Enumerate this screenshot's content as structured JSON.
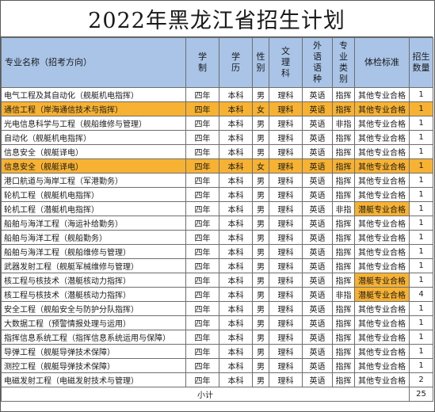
{
  "title": "2022年黑龙江省招生计划",
  "header": {
    "name": "专业名称（招考方向）",
    "xuezhi": "学\n制",
    "xueli": "学\n历",
    "xingbie": "性\n别",
    "wenli": "文\n理\n科",
    "waiyu": "外\n语\n语\n种",
    "leibie": "专\n业\n类\n别",
    "tijian": "体检标准",
    "shuliang": "招生\n数量"
  },
  "rows": [
    {
      "name": "电气工程及其自动化（舰艇机电指挥）",
      "xuezhi": "四年",
      "xueli": "本科",
      "xingbie": "男",
      "wenli": "理科",
      "waiyu": "英语",
      "leibie": "指挥",
      "tijian": "其他专业合格",
      "shuliang": "1",
      "highlight": false,
      "qual_highlight": false
    },
    {
      "name": "通信工程（岸海通信技术与指挥）",
      "xuezhi": "四年",
      "xueli": "本科",
      "xingbie": "女",
      "wenli": "理科",
      "waiyu": "英语",
      "leibie": "指挥",
      "tijian": "其他专业合格",
      "shuliang": "1",
      "highlight": true,
      "qual_highlight": false
    },
    {
      "name": "光电信息科学与工程（舰船维修与管理）",
      "xuezhi": "四年",
      "xueli": "本科",
      "xingbie": "男",
      "wenli": "理科",
      "waiyu": "英语",
      "leibie": "非指",
      "tijian": "其他专业合格",
      "shuliang": "1",
      "highlight": false,
      "qual_highlight": false
    },
    {
      "name": "自动化（舰艇机电指挥）",
      "xuezhi": "四年",
      "xueli": "本科",
      "xingbie": "男",
      "wenli": "理科",
      "waiyu": "英语",
      "leibie": "指挥",
      "tijian": "其他专业合格",
      "shuliang": "1",
      "highlight": false,
      "qual_highlight": false
    },
    {
      "name": "信息安全（舰艇译电）",
      "xuezhi": "四年",
      "xueli": "本科",
      "xingbie": "男",
      "wenli": "理科",
      "waiyu": "英语",
      "leibie": "指挥",
      "tijian": "其他专业合格",
      "shuliang": "1",
      "highlight": false,
      "qual_highlight": false
    },
    {
      "name": "信息安全（舰艇译电）",
      "xuezhi": "四年",
      "xueli": "本科",
      "xingbie": "女",
      "wenli": "理科",
      "waiyu": "英语",
      "leibie": "指挥",
      "tijian": "其他专业合格",
      "shuliang": "1",
      "highlight": true,
      "qual_highlight": false
    },
    {
      "name": "港口航道与海岸工程（军港勤务）",
      "xuezhi": "四年",
      "xueli": "本科",
      "xingbie": "男",
      "wenli": "理科",
      "waiyu": "英语",
      "leibie": "指挥",
      "tijian": "其他专业合格",
      "shuliang": "1",
      "highlight": false,
      "qual_highlight": false
    },
    {
      "name": "轮机工程（舰艇机电指挥）",
      "xuezhi": "四年",
      "xueli": "本科",
      "xingbie": "男",
      "wenli": "理科",
      "waiyu": "英语",
      "leibie": "指挥",
      "tijian": "其他专业合格",
      "shuliang": "1",
      "highlight": false,
      "qual_highlight": false
    },
    {
      "name": "轮机工程（潜艇机电指挥）",
      "xuezhi": "四年",
      "xueli": "本科",
      "xingbie": "男",
      "wenli": "理科",
      "waiyu": "英语",
      "leibie": "非指",
      "tijian": "潜艇专业合格",
      "shuliang": "1",
      "highlight": false,
      "qual_highlight": true
    },
    {
      "name": "船舶与海洋工程（海运补给勤务）",
      "xuezhi": "四年",
      "xueli": "本科",
      "xingbie": "男",
      "wenli": "理科",
      "waiyu": "英语",
      "leibie": "指挥",
      "tijian": "其他专业合格",
      "shuliang": "1",
      "highlight": false,
      "qual_highlight": false
    },
    {
      "name": "船舶与海洋工程（舰船勤务）",
      "xuezhi": "四年",
      "xueli": "本科",
      "xingbie": "男",
      "wenli": "理科",
      "waiyu": "英语",
      "leibie": "指挥",
      "tijian": "其他专业合格",
      "shuliang": "1",
      "highlight": false,
      "qual_highlight": false
    },
    {
      "name": "船舶与海洋工程（舰船维修与管理）",
      "xuezhi": "四年",
      "xueli": "本科",
      "xingbie": "男",
      "wenli": "理科",
      "waiyu": "英语",
      "leibie": "指挥",
      "tijian": "其他专业合格",
      "shuliang": "1",
      "highlight": false,
      "qual_highlight": false
    },
    {
      "name": "武器发射工程（舰艇军械维修与管理）",
      "xuezhi": "四年",
      "xueli": "本科",
      "xingbie": "男",
      "wenli": "理科",
      "waiyu": "英语",
      "leibie": "指挥",
      "tijian": "其他专业合格",
      "shuliang": "1",
      "highlight": false,
      "qual_highlight": false
    },
    {
      "name": "核工程与核技术（潜艇核动力指挥）",
      "xuezhi": "四年",
      "xueli": "本科",
      "xingbie": "男",
      "wenli": "理科",
      "waiyu": "英语",
      "leibie": "指挥",
      "tijian": "潜艇专业合格",
      "shuliang": "1",
      "highlight": false,
      "qual_highlight": true
    },
    {
      "name": "核工程与核技术（潜艇核动力指挥）",
      "xuezhi": "四年",
      "xueli": "本科",
      "xingbie": "男",
      "wenli": "理科",
      "waiyu": "英语",
      "leibie": "非指",
      "tijian": "潜艇专业合格",
      "shuliang": "4",
      "highlight": false,
      "qual_highlight": true
    },
    {
      "name": "安全工程（舰船安全与防护分队指挥）",
      "xuezhi": "四年",
      "xueli": "本科",
      "xingbie": "男",
      "wenli": "理科",
      "waiyu": "英语",
      "leibie": "指挥",
      "tijian": "其他专业合格",
      "shuliang": "1",
      "highlight": false,
      "qual_highlight": false
    },
    {
      "name": "大数据工程（预警情报处理与运用）",
      "xuezhi": "四年",
      "xueli": "本科",
      "xingbie": "男",
      "wenli": "理科",
      "waiyu": "英语",
      "leibie": "指挥",
      "tijian": "其他专业合格",
      "shuliang": "1",
      "highlight": false,
      "qual_highlight": false
    },
    {
      "name": "指挥信息系统工程（指挥信息系统运用与保障）",
      "xuezhi": "四年",
      "xueli": "本科",
      "xingbie": "男",
      "wenli": "理科",
      "waiyu": "英语",
      "leibie": "指挥",
      "tijian": "其他专业合格",
      "shuliang": "1",
      "highlight": false,
      "qual_highlight": false
    },
    {
      "name": "导弹工程（舰艇导弹技术保障）",
      "xuezhi": "四年",
      "xueli": "本科",
      "xingbie": "男",
      "wenli": "理科",
      "waiyu": "英语",
      "leibie": "指挥",
      "tijian": "其他专业合格",
      "shuliang": "1",
      "highlight": false,
      "qual_highlight": false
    },
    {
      "name": "测控工程（舰艇导弹技术保障）",
      "xuezhi": "四年",
      "xueli": "本科",
      "xingbie": "男",
      "wenli": "理科",
      "waiyu": "英语",
      "leibie": "指挥",
      "tijian": "其他专业合格",
      "shuliang": "1",
      "highlight": false,
      "qual_highlight": false
    },
    {
      "name": "电磁发射工程（电磁发射技术与管理）",
      "xuezhi": "四年",
      "xueli": "本科",
      "xingbie": "男",
      "wenli": "理科",
      "waiyu": "英语",
      "leibie": "指挥",
      "tijian": "其他专业合格",
      "shuliang": "2",
      "highlight": false,
      "qual_highlight": false
    }
  ],
  "total": {
    "label": "小计",
    "value": "25"
  },
  "colors": {
    "header_bg": "#a9c4e7",
    "highlight": "#f7b233",
    "border": "#6e6e6e"
  }
}
